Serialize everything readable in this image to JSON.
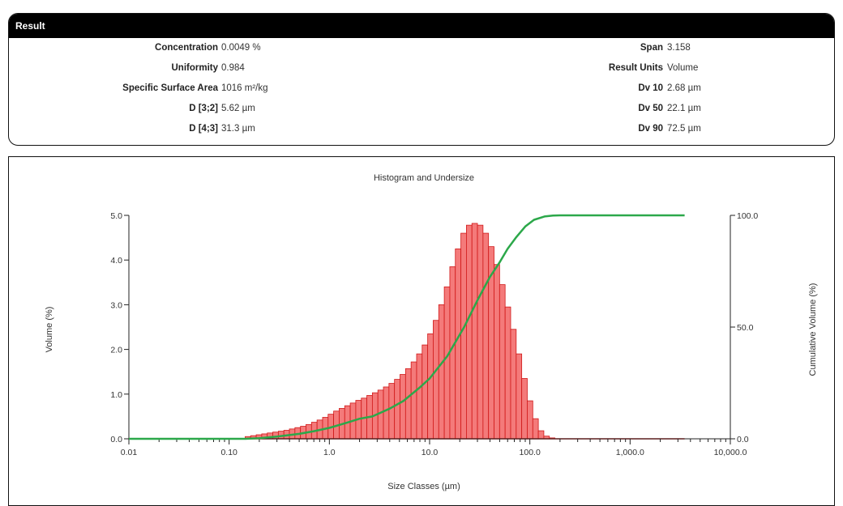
{
  "result": {
    "header": "Result",
    "left": [
      {
        "label": "Concentration",
        "value": "0.0049 %"
      },
      {
        "label": "Uniformity",
        "value": "0.984"
      },
      {
        "label": "Specific Surface Area",
        "value": "1016 m²/kg"
      },
      {
        "label": "D [3;2]",
        "value": "5.62 µm"
      },
      {
        "label": "D [4;3]",
        "value": "31.3 µm"
      }
    ],
    "right": [
      {
        "label": "Span",
        "value": "3.158"
      },
      {
        "label": "Result Units",
        "value": "Volume"
      },
      {
        "label": "Dv 10",
        "value": "2.68 µm"
      },
      {
        "label": "Dv 50",
        "value": "22.1 µm"
      },
      {
        "label": "Dv 90",
        "value": "72.5 µm"
      }
    ]
  },
  "colors": {
    "bar_fill": "#f47a7a",
    "bar_stroke": "#d01818",
    "curve": "#2ca84a",
    "axis": "#222222"
  },
  "chart_data": {
    "type": "bar",
    "title": "Histogram and Undersize",
    "xlabel": "Size Classes (µm)",
    "ylabel": "Volume (%)",
    "y2label": "Cumulative Volume (%)",
    "x_scale": "log",
    "xlim": [
      0.01,
      10000
    ],
    "ylim": [
      0,
      5
    ],
    "y2lim": [
      0,
      100
    ],
    "x_ticks": [
      "0.01",
      "0.10",
      "1.0",
      "10.0",
      "100.0",
      "1,000.0",
      "10,000.0"
    ],
    "y_ticks": [
      "0.0",
      "1.0",
      "2.0",
      "3.0",
      "4.0",
      "5.0"
    ],
    "y2_ticks": [
      "0.0",
      "50.0",
      "100.0"
    ],
    "grid": false,
    "series": [
      {
        "name": "Volume (%)",
        "kind": "histogram",
        "bin_edges": [
          0.1445,
          0.1641,
          0.1863,
          0.2115,
          0.2402,
          0.2727,
          0.3097,
          0.3516,
          0.3993,
          0.4533,
          0.5148,
          0.5845,
          0.6637,
          0.7536,
          0.8557,
          0.9716,
          1.103,
          1.253,
          1.423,
          1.615,
          1.834,
          2.083,
          2.365,
          2.685,
          3.049,
          3.462,
          3.931,
          4.464,
          5.069,
          5.756,
          6.535,
          7.421,
          8.426,
          9.568,
          10.86,
          12.34,
          14.01,
          15.91,
          18.06,
          20.51,
          23.29,
          26.44,
          30.02,
          34.09,
          38.71,
          43.95,
          49.91,
          56.67,
          64.35,
          73.07,
          82.97,
          94.21,
          107.0,
          121.5,
          137.9,
          156.6,
          177.8,
          201.9
        ],
        "values": [
          0.05,
          0.07,
          0.09,
          0.11,
          0.13,
          0.15,
          0.17,
          0.19,
          0.22,
          0.25,
          0.28,
          0.32,
          0.37,
          0.42,
          0.48,
          0.55,
          0.62,
          0.68,
          0.74,
          0.8,
          0.86,
          0.91,
          0.97,
          1.03,
          1.09,
          1.16,
          1.24,
          1.33,
          1.44,
          1.57,
          1.72,
          1.9,
          2.1,
          2.35,
          2.65,
          3.0,
          3.4,
          3.85,
          4.25,
          4.6,
          4.78,
          4.82,
          4.78,
          4.6,
          4.3,
          3.9,
          3.45,
          2.95,
          2.45,
          1.9,
          1.35,
          0.85,
          0.45,
          0.18,
          0.06,
          0.02,
          0.0
        ]
      },
      {
        "name": "Cumulative Volume (%)",
        "kind": "line",
        "x": [
          0.01,
          0.145,
          0.2,
          0.3,
          0.5,
          0.7,
          1.0,
          1.5,
          2.0,
          2.68,
          4.0,
          5.5,
          8.0,
          10.0,
          15.0,
          22.1,
          30.0,
          40.0,
          50.0,
          60.0,
          72.5,
          90.0,
          110.0,
          140.0,
          170.0,
          200.0,
          300.0,
          500.0,
          1000.0,
          3500.0
        ],
        "y": [
          0,
          0,
          0.3,
          1.0,
          2.2,
          3.4,
          4.9,
          7.2,
          9.0,
          10.0,
          13.5,
          17.0,
          23.0,
          27.0,
          37.0,
          50.0,
          62.0,
          72.5,
          79.0,
          85.0,
          90.0,
          95.0,
          98.0,
          99.5,
          99.9,
          100,
          100,
          100,
          100,
          100
        ]
      }
    ]
  }
}
